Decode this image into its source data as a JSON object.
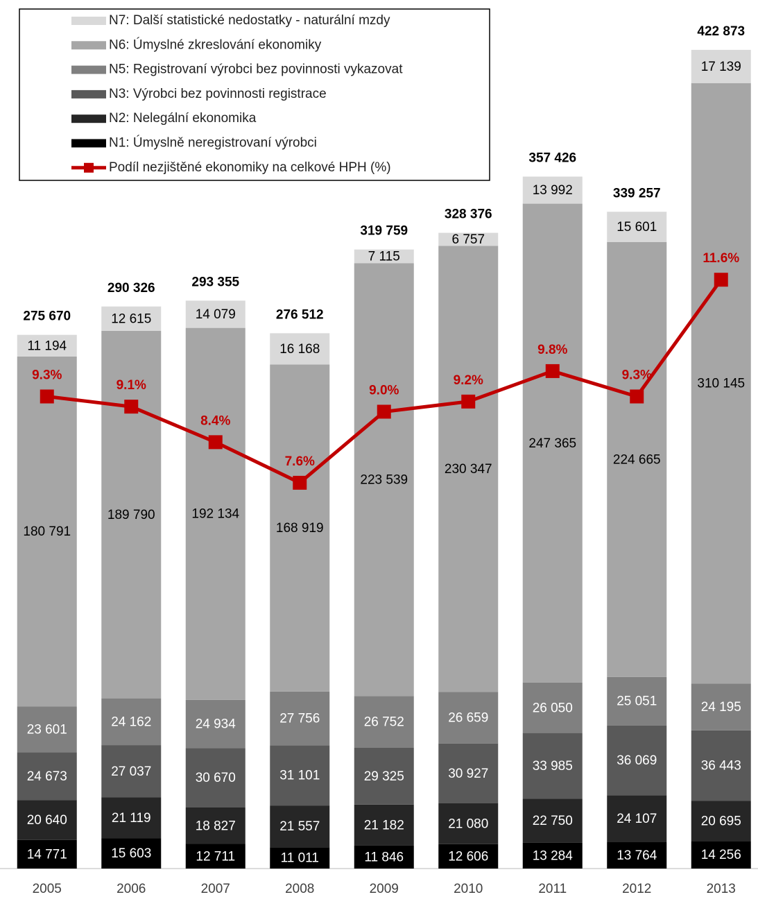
{
  "chart_data": {
    "type": "bar",
    "stacked": true,
    "categories": [
      "2005",
      "2006",
      "2007",
      "2008",
      "2009",
      "2010",
      "2011",
      "2012",
      "2013"
    ],
    "ylim": [
      0,
      430000
    ],
    "y2lim": [
      0,
      16.4
    ],
    "series": [
      {
        "name": "N1: Úmyslně neregistrovaní výrobci",
        "color": "#000000",
        "label_color": "#ffffff",
        "values": [
          14771,
          15603,
          12711,
          11011,
          11846,
          12606,
          13284,
          13764,
          14256
        ],
        "value_labels": [
          "14 771",
          "15 603",
          "12 711",
          "11 011",
          "11 846",
          "12 606",
          "13 284",
          "13 764",
          "14 256"
        ]
      },
      {
        "name": "N2: Nelegální ekonomika",
        "color": "#262626",
        "label_color": "#ffffff",
        "values": [
          20640,
          21119,
          18827,
          21557,
          21182,
          21080,
          22750,
          24107,
          20695
        ],
        "value_labels": [
          "20 640",
          "21 119",
          "18 827",
          "21 557",
          "21 182",
          "21 080",
          "22 750",
          "24 107",
          "20 695"
        ]
      },
      {
        "name": "N3: Výrobci bez povinnosti registrace",
        "color": "#595959",
        "label_color": "#ffffff",
        "values": [
          24673,
          27037,
          30670,
          31101,
          29325,
          30927,
          33985,
          36069,
          36443
        ],
        "value_labels": [
          "24 673",
          "27 037",
          "30 670",
          "31 101",
          "29 325",
          "30 927",
          "33 985",
          "36 069",
          "36 443"
        ]
      },
      {
        "name": "N5: Registrovaní výrobci bez povinnosti  vykazovat",
        "color": "#808080",
        "label_color": "#ffffff",
        "values": [
          23601,
          24162,
          24934,
          27756,
          26752,
          26659,
          26050,
          25051,
          24195
        ],
        "value_labels": [
          "23 601",
          "24 162",
          "24 934",
          "27 756",
          "26 752",
          "26 659",
          "26 050",
          "25 051",
          "24 195"
        ]
      },
      {
        "name": "N6: Úmyslné zkreslování ekonomiky",
        "color": "#a6a6a6",
        "label_color": "#000000",
        "values": [
          180791,
          189790,
          192134,
          168919,
          223539,
          230347,
          247365,
          224665,
          310145
        ],
        "value_labels": [
          "180 791",
          "189 790",
          "192 134",
          "168 919",
          "223 539",
          "230 347",
          "247 365",
          "224 665",
          "310 145"
        ]
      },
      {
        "name": "N7: Další statistické nedostatky - naturální mzdy",
        "color": "#d9d9d9",
        "label_color": "#000000",
        "values": [
          11194,
          12615,
          14079,
          16168,
          7115,
          6757,
          13992,
          15601,
          17139
        ],
        "value_labels": [
          "11 194",
          "12 615",
          "14 079",
          "16 168",
          "7 115",
          "6 757",
          "13 992",
          "15 601",
          "17 139"
        ]
      },
      {
        "name": "Podíl nezjištěné ekonomiky na celkové HPH (%)",
        "type": "line",
        "axis": "y2",
        "color": "#c00000",
        "values": [
          9.3,
          9.1,
          8.4,
          7.6,
          9.0,
          9.2,
          9.8,
          9.3,
          11.6
        ],
        "value_labels": [
          "9.3%",
          "9.1%",
          "8.4%",
          "7.6%",
          "9.0%",
          "9.2%",
          "9.8%",
          "9.3%",
          "11.6%"
        ]
      }
    ],
    "totals": {
      "values": [
        275670,
        290326,
        293355,
        276512,
        319759,
        328376,
        357426,
        339257,
        422873
      ],
      "value_labels": [
        "275 670",
        "290 326",
        "293 355",
        "276 512",
        "319 759",
        "328 376",
        "357 426",
        "339 257",
        "422 873"
      ]
    }
  }
}
